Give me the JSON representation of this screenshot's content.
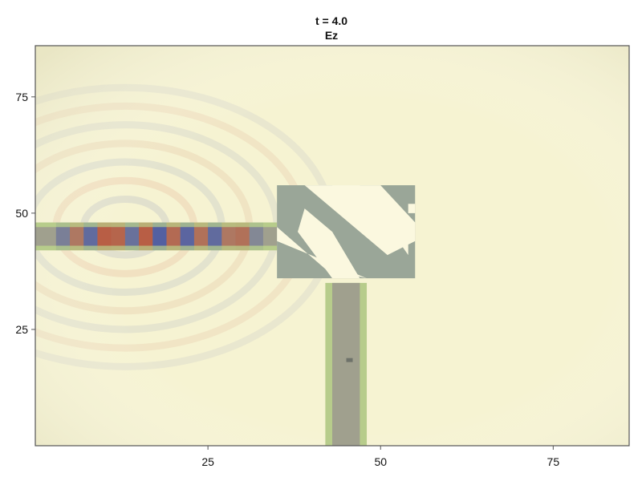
{
  "chart_data": {
    "type": "heatmap",
    "title": "t = 4.0",
    "subtitle": "Ez",
    "xlabel": "",
    "ylabel": "",
    "xlim": [
      0,
      86
    ],
    "ylim": [
      0,
      86
    ],
    "x_ticks": [
      25,
      50,
      75
    ],
    "x_tick_labels": [
      "25",
      "50",
      "75"
    ],
    "y_ticks": [
      25,
      50,
      75
    ],
    "y_tick_labels": [
      "25",
      "50",
      "75"
    ],
    "grid": false,
    "legend": "none",
    "colors": {
      "background": "#f6f3d2",
      "frame": "#555555",
      "waveguide_border": "#b7cc8b",
      "waveguide_core": "#a0a08e",
      "splitter": "#9aa698",
      "splitter_gap": "#fbf8df",
      "probe": "#6e726a",
      "positive_field": "#c0492d",
      "negative_field": "#3a4aa8"
    },
    "structures": [
      {
        "name": "input-waveguide",
        "x": [
          0,
          35
        ],
        "y": [
          42,
          48
        ],
        "core_y": [
          43,
          47
        ]
      },
      {
        "name": "output-waveguide",
        "x": [
          42,
          48
        ],
        "y": [
          0,
          35
        ],
        "core_x": [
          43,
          47
        ]
      },
      {
        "name": "splitter-block",
        "x": [
          35,
          55
        ],
        "y": [
          36,
          56
        ]
      }
    ],
    "probe": {
      "x": 45.5,
      "y": 18.5
    },
    "field_rings": {
      "center": [
        13,
        47
      ],
      "radii": [
        6,
        10,
        14,
        18,
        22,
        26,
        30
      ],
      "alternating_sign": true
    },
    "guided_wave": {
      "y": 45,
      "x_start": 4,
      "x_end": 33,
      "cells": [
        {
          "x": 4,
          "v": -0.4
        },
        {
          "x": 6,
          "v": 0.5
        },
        {
          "x": 8,
          "v": -0.7
        },
        {
          "x": 10,
          "v": 0.9
        },
        {
          "x": 12,
          "v": 0.8
        },
        {
          "x": 14,
          "v": -0.6
        },
        {
          "x": 16,
          "v": 0.9
        },
        {
          "x": 18,
          "v": -0.9
        },
        {
          "x": 20,
          "v": 0.7
        },
        {
          "x": 22,
          "v": -0.8
        },
        {
          "x": 24,
          "v": 0.6
        },
        {
          "x": 26,
          "v": -0.7
        },
        {
          "x": 28,
          "v": 0.5
        },
        {
          "x": 30,
          "v": 0.6
        },
        {
          "x": 32,
          "v": -0.3
        }
      ]
    }
  }
}
